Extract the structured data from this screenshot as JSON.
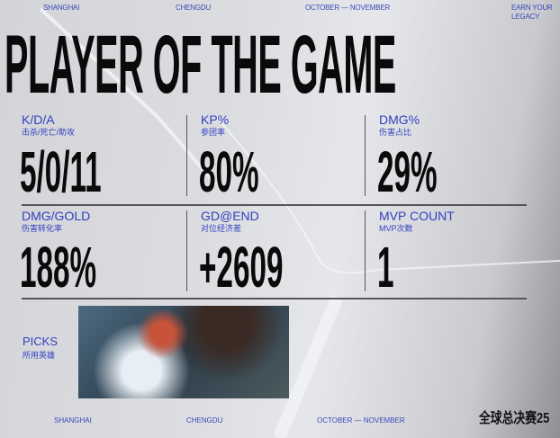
{
  "header": {
    "cities": [
      "SHANGHAI",
      "CHENGDU"
    ],
    "dates": "OCTOBER — NOVEMBER",
    "slogan_line1": "EARN YOUR",
    "slogan_line2": "LEGACY"
  },
  "title": "PLAYER OF THE GAME",
  "stats": [
    {
      "label": "K/D/A",
      "sub": "击杀/死亡/助攻",
      "value": "5/0/11"
    },
    {
      "label": "KP%",
      "sub": "参团率",
      "value": "80%"
    },
    {
      "label": "DMG%",
      "sub": "伤害占比",
      "value": "29%"
    },
    {
      "label": "DMG/GOLD",
      "sub": "伤害转化率",
      "value": "188%"
    },
    {
      "label": "GD@END",
      "sub": "对位经济差",
      "value": "+2609"
    },
    {
      "label": "MVP COUNT",
      "sub": "MVP次数",
      "value": "1"
    }
  ],
  "picks": {
    "label": "PICKS",
    "sub": "所用英雄"
  },
  "footer": {
    "cities": [
      "SHANGHAI",
      "CHENGDU"
    ],
    "dates": "OCTOBER — NOVEMBER",
    "logo": "全球总决赛25"
  },
  "colors": {
    "accent": "#3340c0",
    "text": "#0a0a0a"
  }
}
